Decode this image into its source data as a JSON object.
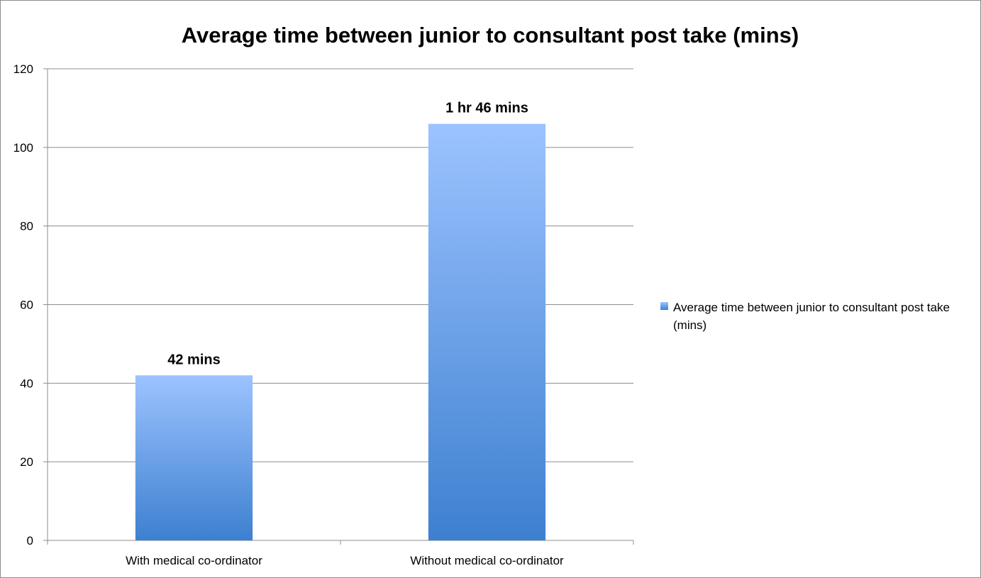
{
  "chart_data": {
    "type": "bar",
    "title": "Average time between junior to consultant post take (mins)",
    "categories": [
      "With medical co-ordinator",
      "Without medical co-ordinator"
    ],
    "series": [
      {
        "name": "Average time between junior to consultant post take (mins)",
        "values": [
          42,
          106
        ],
        "data_labels": [
          "42 mins",
          "1 hr 46 mins"
        ]
      }
    ],
    "xlabel": "",
    "ylabel": "",
    "ylim": [
      0,
      120
    ],
    "yticks": [
      0,
      20,
      40,
      60,
      80,
      100,
      120
    ],
    "grid": true,
    "legend_position": "right",
    "colors": {
      "bar_top": "#9cc3ff",
      "bar_bottom": "#3d80d0",
      "gridline": "#8c8c8c"
    }
  }
}
